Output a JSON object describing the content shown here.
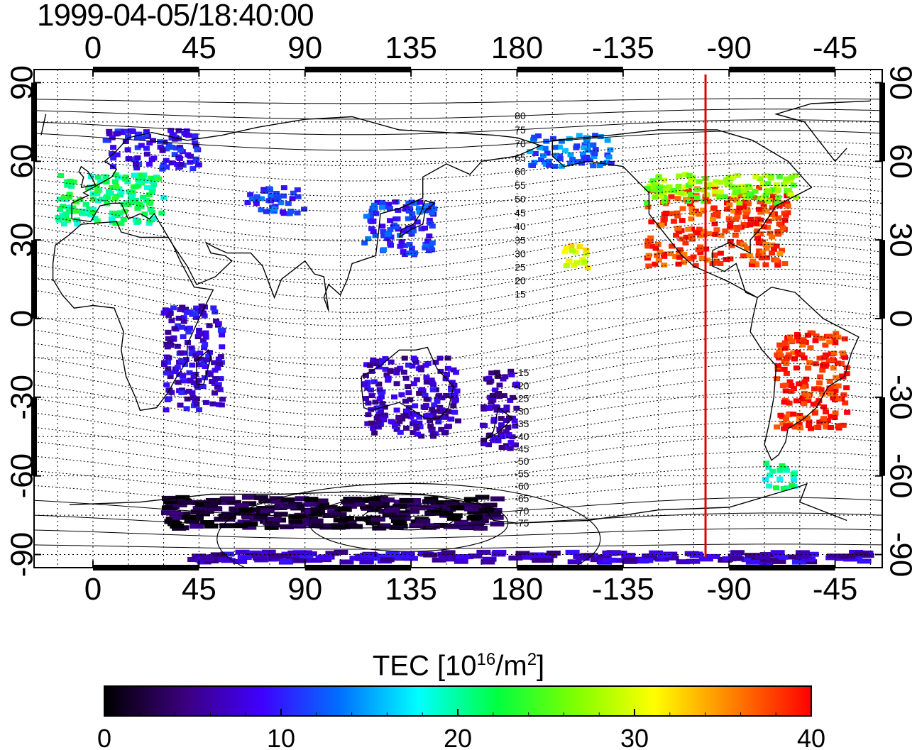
{
  "timestamp": "1999-04-05/18:40:00",
  "map": {
    "lon_tick_labels": [
      "0",
      "45",
      "90",
      "135",
      "180",
      "-135",
      "-90",
      "-45"
    ],
    "lat_tick_labels": [
      "90",
      "60",
      "30",
      "0",
      "-30",
      "-60",
      "-90"
    ],
    "lon_ticks_deg": [
      0,
      45,
      90,
      135,
      180,
      225,
      270,
      315
    ],
    "lat_ticks_deg": [
      90,
      60,
      30,
      0,
      -30,
      -60,
      -90
    ],
    "lon_range": [
      -25,
      335
    ],
    "lat_range": [
      -95,
      95
    ],
    "gridline_style": "dotted",
    "marker_meridian_lon": -100,
    "marker_meridian_color": "#e00000",
    "magnetic_contour_labels": [
      "80",
      "75",
      "70",
      "65",
      "60",
      "55",
      "50",
      "45",
      "40",
      "35",
      "30",
      "25",
      "20",
      "15",
      "-15",
      "-20",
      "-25",
      "-30",
      "-35",
      "-40",
      "-45",
      "-50",
      "-55",
      "-60",
      "-65",
      "-70",
      "-75"
    ]
  },
  "colorbar": {
    "title_main": "TEC  [10",
    "title_exp1": "16",
    "title_mid": "/m",
    "title_exp2": "2",
    "title_end": "]",
    "tick_labels": [
      "0",
      "10",
      "20",
      "30",
      "40"
    ],
    "range": [
      0,
      40
    ],
    "colors": [
      "#000000",
      "#3a007a",
      "#4000ff",
      "#0070ff",
      "#00ffff",
      "#00ff40",
      "#7fff00",
      "#ffff00",
      "#ff8000",
      "#ff0000"
    ]
  },
  "tec_regions": [
    {
      "name": "north-america",
      "lon": [
        -125,
        -65
      ],
      "lat": [
        20,
        50
      ],
      "tec": 38
    },
    {
      "name": "north-america-north",
      "lon": [
        -125,
        -60
      ],
      "lat": [
        44,
        55
      ],
      "tec": 27
    },
    {
      "name": "south-america",
      "lon": [
        -70,
        -40
      ],
      "lat": [
        -42,
        -5
      ],
      "tec": 39
    },
    {
      "name": "patagonia",
      "lon": [
        -75,
        -62
      ],
      "lat": [
        -65,
        -55
      ],
      "tec": 20
    },
    {
      "name": "europe",
      "lon": [
        -15,
        30
      ],
      "lat": [
        36,
        55
      ],
      "tec": 21
    },
    {
      "name": "scandinavia",
      "lon": [
        5,
        45
      ],
      "lat": [
        57,
        72
      ],
      "tec": 9
    },
    {
      "name": "japan-china",
      "lon": [
        115,
        145
      ],
      "lat": [
        24,
        45
      ],
      "tec": 11
    },
    {
      "name": "central-asia",
      "lon": [
        65,
        90
      ],
      "lat": [
        40,
        50
      ],
      "tec": 11
    },
    {
      "name": "australia",
      "lon": [
        115,
        155
      ],
      "lat": [
        -45,
        -15
      ],
      "tec": 7
    },
    {
      "name": "new-zealand",
      "lon": [
        165,
        180
      ],
      "lat": [
        -50,
        -20
      ],
      "tec": 6
    },
    {
      "name": "alaska",
      "lon": [
        -175,
        -140
      ],
      "lat": [
        58,
        70
      ],
      "tec": 13
    },
    {
      "name": "antarctica",
      "lon": [
        30,
        170
      ],
      "lat": [
        -80,
        -68
      ],
      "tec": 2
    },
    {
      "name": "south-pole-band",
      "lon": [
        40,
        330
      ],
      "lat": [
        -93,
        -89
      ],
      "tec": 7
    },
    {
      "name": "africa-east",
      "lon": [
        30,
        55
      ],
      "lat": [
        -35,
        5
      ],
      "tec": 8
    },
    {
      "name": "hawaii",
      "lon": [
        -160,
        -150
      ],
      "lat": [
        18,
        28
      ],
      "tec": 30
    }
  ]
}
